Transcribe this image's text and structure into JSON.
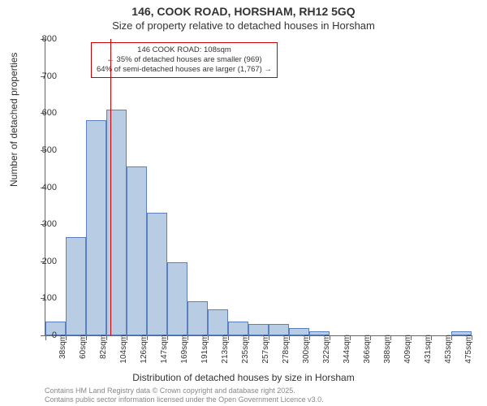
{
  "title_main": "146, COOK ROAD, HORSHAM, RH12 5GQ",
  "title_sub": "Size of property relative to detached houses in Horsham",
  "y_axis_title": "Number of detached properties",
  "x_axis_title": "Distribution of detached houses by size in Horsham",
  "footer_line1": "Contains HM Land Registry data © Crown copyright and database right 2025.",
  "footer_line2": "Contains public sector information licensed under the Open Government Licence v3.0.",
  "annotation": {
    "line1": "146 COOK ROAD: 108sqm",
    "line2": "← 35% of detached houses are smaller (969)",
    "line3": "64% of semi-detached houses are larger (1,767) →"
  },
  "chart": {
    "type": "histogram",
    "background_color": "#ffffff",
    "bar_fill": "#b8cce4",
    "bar_stroke": "#5b7fbf",
    "axis_color": "#666666",
    "text_color": "#333333",
    "ref_line_color": "#cc0000",
    "ref_value": 108,
    "ylim": [
      0,
      800
    ],
    "ytick_step": 100,
    "x_start": 38,
    "x_step": 22,
    "x_intervals": 21,
    "x_end": 500,
    "x_labels": [
      "38sqm",
      "60sqm",
      "82sqm",
      "104sqm",
      "126sqm",
      "147sqm",
      "169sqm",
      "191sqm",
      "213sqm",
      "235sqm",
      "257sqm",
      "278sqm",
      "300sqm",
      "322sqm",
      "344sqm",
      "366sqm",
      "388sqm",
      "409sqm",
      "431sqm",
      "453sqm",
      "475sqm"
    ],
    "values": [
      38,
      265,
      580,
      610,
      455,
      330,
      198,
      92,
      70,
      38,
      30,
      30,
      20,
      10,
      0,
      0,
      0,
      0,
      0,
      0,
      10
    ],
    "title_fontsize": 14,
    "subtitle_fontsize": 13,
    "label_fontsize": 11,
    "ticklabel_fontsize": 10,
    "annotation_fontsize": 9.5,
    "footer_fontsize": 9
  },
  "y_ticks": [
    "0",
    "100",
    "200",
    "300",
    "400",
    "500",
    "600",
    "700",
    "800"
  ]
}
